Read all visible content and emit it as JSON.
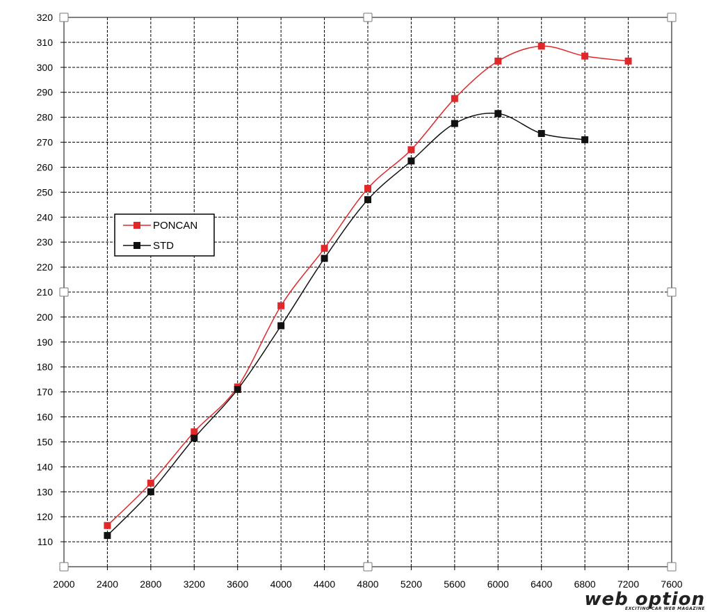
{
  "chart_data": {
    "type": "line",
    "title": "",
    "xlabel": "",
    "ylabel": "",
    "xlim": [
      2000,
      7600
    ],
    "ylim": [
      100,
      320
    ],
    "x_ticks": [
      2000,
      2400,
      2800,
      3200,
      3600,
      4000,
      4400,
      4800,
      5200,
      5600,
      6000,
      6400,
      6800,
      7200,
      7600
    ],
    "y_ticks": [
      110,
      120,
      130,
      140,
      150,
      160,
      170,
      180,
      190,
      200,
      210,
      220,
      230,
      240,
      250,
      260,
      270,
      280,
      290,
      300,
      310,
      320
    ],
    "grid": true,
    "legend_position": "left-middle",
    "series": [
      {
        "name": "PONCAN",
        "color": "#e0282b",
        "marker": "square",
        "x": [
          2400,
          2800,
          3200,
          3600,
          4000,
          4400,
          4800,
          5200,
          5600,
          6000,
          6400,
          6800,
          7200
        ],
        "y": [
          116.5,
          133.5,
          154,
          172,
          204.5,
          227.5,
          251.5,
          267,
          287.5,
          302.5,
          308.5,
          304.5,
          302.5
        ]
      },
      {
        "name": "STD",
        "color": "#111111",
        "marker": "square",
        "x": [
          2400,
          2800,
          3200,
          3600,
          4000,
          4400,
          4800,
          5200,
          5600,
          6000,
          6400,
          6800
        ],
        "y": [
          112.5,
          130,
          151.5,
          171,
          196.5,
          223.5,
          247,
          262.5,
          277.5,
          281.5,
          273.5,
          271
        ]
      }
    ]
  },
  "watermark": {
    "brand": "web option",
    "tagline": "EXCITING CAR WEB MAGAZINE"
  }
}
